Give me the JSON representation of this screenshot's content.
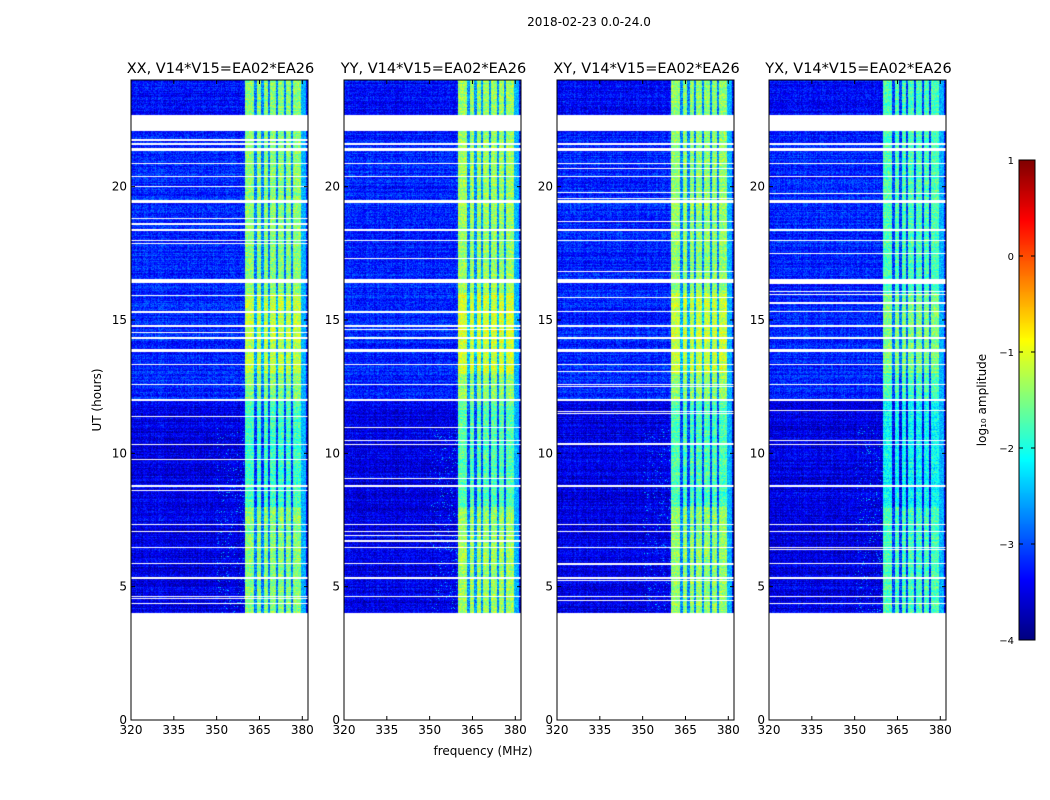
{
  "chart_data": {
    "type": "heatmap",
    "suptitle": "2018-02-23 0.0-24.0",
    "panels": [
      {
        "title": "XX, V14*V15=EA02*EA26",
        "peak_level": -1.2
      },
      {
        "title": "YY, V14*V15=EA02*EA26",
        "peak_level": -1.1
      },
      {
        "title": "XY, V14*V15=EA02*EA26",
        "peak_level": -1.15
      },
      {
        "title": "YX, V14*V15=EA02*EA26",
        "peak_level": -1.5
      }
    ],
    "xlabel": "frequency (MHz)",
    "ylabel": "UT (hours)",
    "xlim": [
      320,
      382
    ],
    "ylim": [
      0,
      24
    ],
    "xticks": [
      320,
      335,
      350,
      365,
      380
    ],
    "yticks": [
      0,
      5,
      10,
      15,
      20
    ],
    "data_start_hour": 4.0,
    "data_end_hour": 24.0,
    "bright_band_mhz": [
      360,
      379.5
    ],
    "band_gap_channels_mhz": [
      363.6,
      366.0,
      368.4,
      371.2,
      374.0,
      376.4
    ],
    "fully_flagged_hours": [
      [
        22.1,
        22.7
      ],
      [
        21.55,
        21.65
      ],
      [
        21.35,
        21.45
      ],
      [
        20.85,
        20.9
      ],
      [
        20.35,
        20.4
      ],
      [
        19.4,
        19.5
      ],
      [
        18.35,
        18.4
      ],
      [
        17.95,
        18.0
      ],
      [
        16.4,
        16.55
      ],
      [
        15.3,
        15.35
      ],
      [
        14.75,
        14.8
      ],
      [
        14.3,
        14.35
      ],
      [
        13.8,
        13.9
      ],
      [
        13.3,
        13.35
      ],
      [
        12.55,
        12.6
      ],
      [
        11.95,
        12.05
      ],
      [
        10.3,
        10.35
      ],
      [
        8.75,
        8.8
      ],
      [
        7.3,
        7.35
      ],
      [
        7.05,
        7.1
      ],
      [
        6.45,
        6.5
      ],
      [
        5.85,
        5.9
      ],
      [
        5.3,
        5.35
      ],
      [
        4.6,
        4.65
      ]
    ],
    "colorbar": {
      "label": "log₁₀ amplitude",
      "range": [
        -4,
        1
      ],
      "ticks": [
        "−4",
        "−3",
        "−2",
        "−1",
        "0",
        "1"
      ],
      "colormap": "jet"
    }
  }
}
